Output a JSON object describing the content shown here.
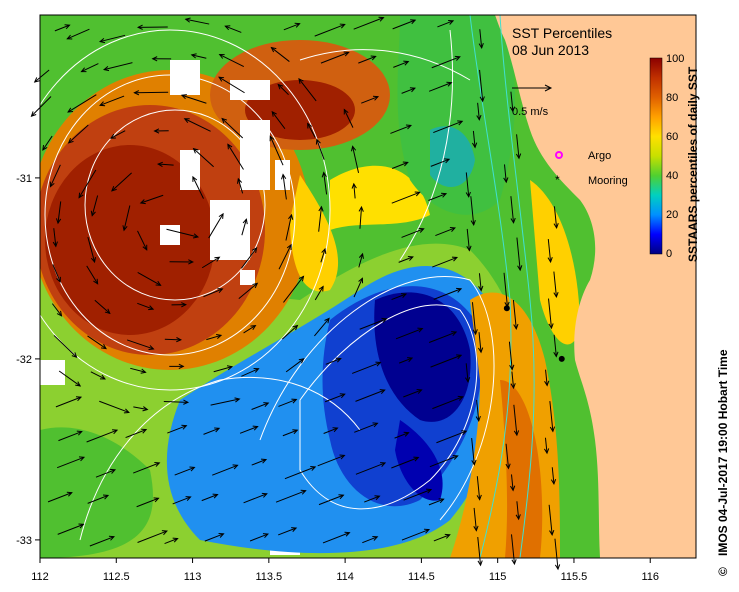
{
  "map": {
    "title": "SST Percentiles",
    "date": "08 Jun 2013",
    "vector_scale_label": "0.5 m/s",
    "x_ticks": [
      "112",
      "112.5",
      "113",
      "113.5",
      "114",
      "114.5",
      "115",
      "115.5",
      "116"
    ],
    "y_ticks": [
      "-31",
      "-32",
      "-33"
    ],
    "extent": {
      "lon": [
        112,
        116.3
      ],
      "lat": [
        -33.1,
        -30.1
      ]
    },
    "colorbar": {
      "label": "SSTAARS percentiles of daily SST",
      "ticks": [
        "100",
        "80",
        "60",
        "40",
        "20",
        "0"
      ],
      "colors": [
        "#000080",
        "#0000ff",
        "#0090ff",
        "#00d0c0",
        "#50d030",
        "#c8e000",
        "#ffe000",
        "#ffa000",
        "#e06000",
        "#c03000",
        "#8b0000"
      ]
    },
    "legend": {
      "argo_label": "Argo",
      "mooring_label": "Mooring",
      "argo_color": "#ff00ff",
      "mooring_color": "#000000"
    },
    "moorings": [
      {
        "lon": 115.06,
        "lat": -31.72
      },
      {
        "lon": 115.42,
        "lat": -32.0
      }
    ],
    "credit": "IMOS 04-Jul-2017 19:00 Hobart Time",
    "copyright_symbol": "©",
    "land_color": "#ffc896",
    "contour_color": "#ffffff"
  }
}
